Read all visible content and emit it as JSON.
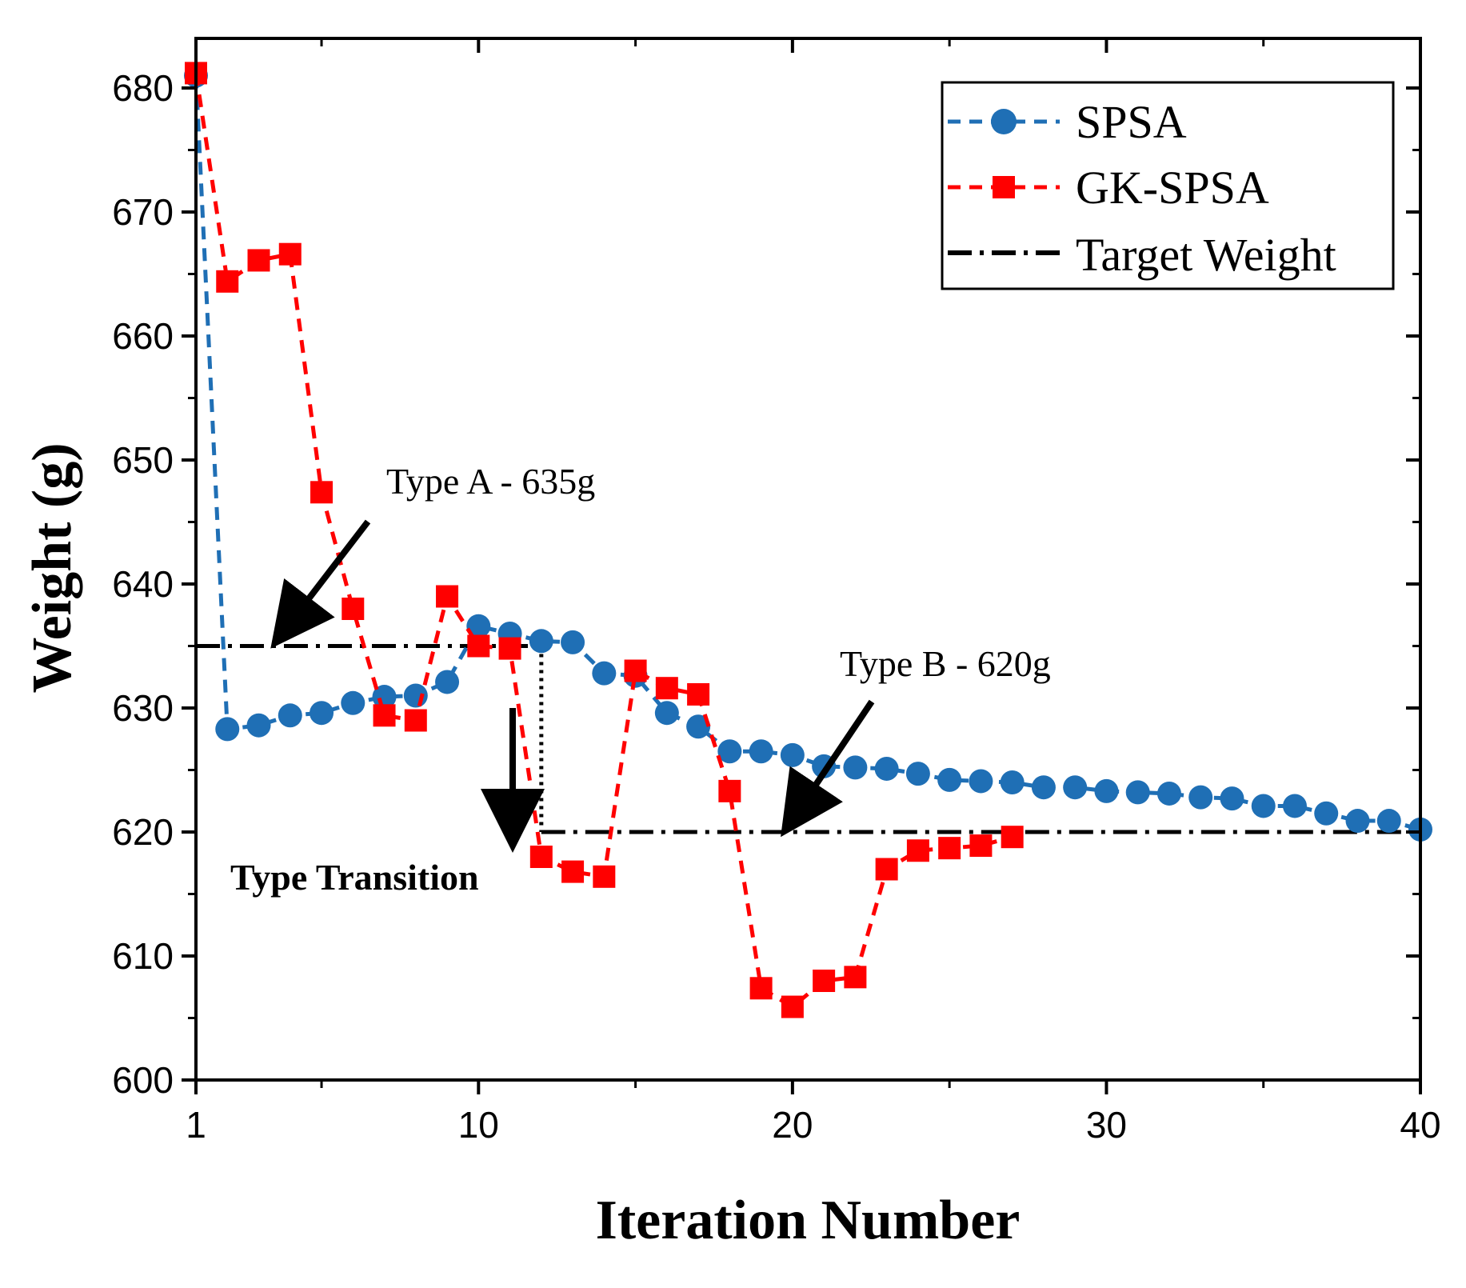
{
  "chart_data": {
    "type": "line",
    "xlabel": "Iteration Number",
    "ylabel": "Weight (g)",
    "xlim": [
      1,
      40
    ],
    "ylim": [
      600,
      684
    ],
    "xticks": [
      1,
      10,
      20,
      30,
      40
    ],
    "yticks": [
      600,
      610,
      620,
      630,
      640,
      650,
      660,
      670,
      680
    ],
    "x_tick_labels": [
      "1",
      "10",
      "20",
      "30",
      "40"
    ],
    "y_tick_labels": [
      "600",
      "610",
      "620",
      "630",
      "640",
      "650",
      "660",
      "670",
      "680"
    ],
    "series": [
      {
        "name": "SPSA",
        "color": "#1f6fb5",
        "marker": "circle",
        "x": [
          1,
          2,
          3,
          4,
          5,
          6,
          7,
          8,
          9,
          10,
          11,
          12,
          13,
          14,
          15,
          16,
          17,
          18,
          19,
          20,
          21,
          22,
          23,
          24,
          25,
          26,
          27,
          28,
          29,
          30,
          31,
          32,
          33,
          34,
          35,
          36,
          37,
          38,
          39,
          40
        ],
        "values": [
          681,
          628.3,
          628.6,
          629.4,
          629.6,
          630.4,
          630.9,
          631.0,
          632.1,
          636.6,
          636.0,
          635.4,
          635.3,
          632.8,
          632.6,
          629.6,
          628.5,
          626.5,
          626.5,
          626.2,
          625.3,
          625.2,
          625.1,
          624.7,
          624.2,
          624.1,
          624.0,
          623.6,
          623.6,
          623.3,
          623.2,
          623.1,
          622.8,
          622.7,
          622.1,
          622.1,
          621.5,
          620.9,
          620.9,
          620.2
        ]
      },
      {
        "name": "GK-SPSA",
        "color": "#ff0000",
        "marker": "square",
        "x": [
          1,
          2,
          3,
          4,
          5,
          6,
          7,
          8,
          9,
          10,
          11,
          12,
          13,
          14,
          15,
          16,
          17,
          18,
          19,
          20,
          21,
          22,
          23,
          24,
          25,
          26,
          27
        ],
        "values": [
          681.2,
          664.4,
          666.1,
          666.6,
          647.4,
          638.0,
          629.4,
          629.0,
          639.0,
          635.0,
          634.8,
          618.0,
          616.8,
          616.4,
          633.0,
          631.6,
          631.1,
          623.3,
          607.4,
          605.9,
          608.0,
          608.3,
          617.0,
          618.5,
          618.7,
          618.9,
          619.6
        ]
      },
      {
        "name": "Target Weight",
        "color": "#000000",
        "marker": "none",
        "x": [
          1,
          12,
          12,
          40
        ],
        "values": [
          635,
          635,
          620,
          620
        ]
      }
    ],
    "legend": {
      "position": "top-right",
      "entries": [
        "SPSA",
        "GK-SPSA",
        "Target Weight"
      ]
    },
    "annotations": [
      {
        "text": "Type A - 635g",
        "points_to": [
          3.2,
          635
        ]
      },
      {
        "text": "Type B - 620g",
        "points_to": [
          19.4,
          620
        ]
      },
      {
        "text": "Type Transition",
        "points_to": [
          11.2,
          619.5
        ]
      }
    ]
  }
}
